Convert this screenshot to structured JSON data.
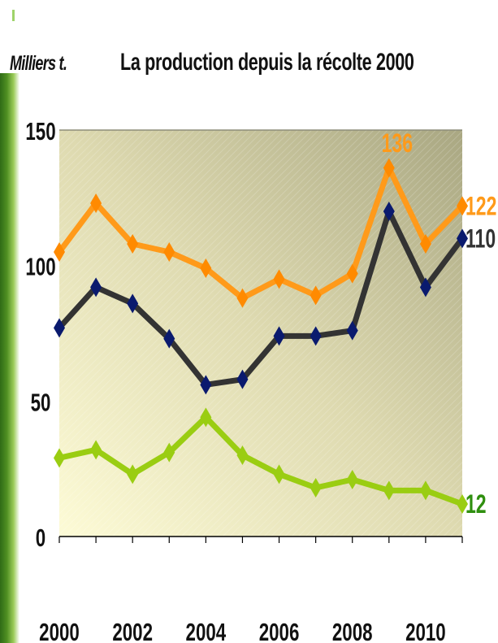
{
  "chart_data": {
    "type": "line",
    "title": "La production depuis la récolte 2000",
    "ylabel": "Milliers t.",
    "xlabel": "",
    "x": [
      2000,
      2001,
      2002,
      2003,
      2004,
      2005,
      2006,
      2007,
      2008,
      2009,
      2010,
      2011
    ],
    "xticks": [
      "2000",
      "2002",
      "2004",
      "2006",
      "2008",
      "2010"
    ],
    "ylim": [
      0,
      150
    ],
    "yticks": [
      "0",
      "50",
      "100",
      "150"
    ],
    "legend": "none",
    "grid": false,
    "series": [
      {
        "color": "#ff9a1a",
        "marker_color": "#ff8a00",
        "values": [
          105,
          123,
          108,
          105,
          99,
          88,
          95,
          89,
          97,
          136,
          108,
          122
        ],
        "end_label": "122",
        "peak_label": "136"
      },
      {
        "color": "#333333",
        "marker_color": "#0a1a6e",
        "values": [
          77,
          92,
          86,
          73,
          56,
          58,
          74,
          74,
          76,
          120,
          92,
          110
        ],
        "end_label": "110"
      },
      {
        "color": "#9acd12",
        "marker_color": "#9acd12",
        "values": [
          29,
          32,
          23,
          31,
          44,
          30,
          23,
          18,
          21,
          17,
          17,
          12
        ],
        "end_label": "12",
        "end_label_color": "#2f8f0f"
      }
    ]
  }
}
